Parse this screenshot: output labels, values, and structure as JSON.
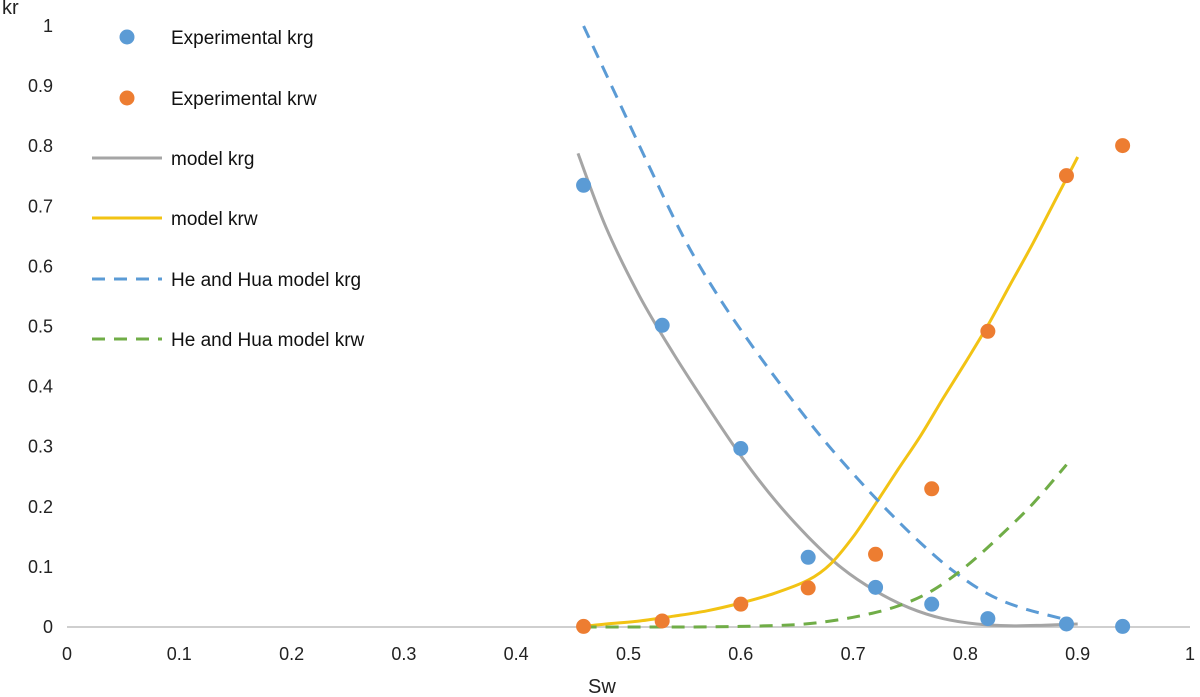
{
  "chart_data": {
    "type": "scatter",
    "xlabel": "Sw",
    "ylabel": "kr",
    "xlim": [
      0,
      1
    ],
    "ylim": [
      0,
      1
    ],
    "x_ticks": [
      "0",
      "0.1",
      "0.2",
      "0.3",
      "0.4",
      "0.5",
      "0.6",
      "0.7",
      "0.8",
      "0.9",
      "1"
    ],
    "y_ticks": [
      "0",
      "0.1",
      "0.2",
      "0.3",
      "0.4",
      "0.5",
      "0.6",
      "0.7",
      "0.8",
      "0.9",
      "1"
    ],
    "grid": false,
    "legend_position": "top-left",
    "series": [
      {
        "name": "Experimental krg",
        "kind": "markers",
        "color": "#5b9bd5",
        "x": [
          0.46,
          0.53,
          0.6,
          0.66,
          0.72,
          0.77,
          0.82,
          0.89,
          0.94
        ],
        "y": [
          0.735,
          0.502,
          0.297,
          0.116,
          0.066,
          0.038,
          0.014,
          0.005,
          0.001
        ]
      },
      {
        "name": "Experimental krw",
        "kind": "markers",
        "color": "#ed7d31",
        "x": [
          0.46,
          0.53,
          0.6,
          0.66,
          0.72,
          0.77,
          0.82,
          0.89,
          0.94
        ],
        "y": [
          0.001,
          0.01,
          0.038,
          0.065,
          0.121,
          0.23,
          0.492,
          0.751,
          0.801
        ]
      },
      {
        "name": "model krg",
        "kind": "solid",
        "color": "#a5a5a5",
        "x": [
          0.455,
          0.48,
          0.51,
          0.54,
          0.57,
          0.6,
          0.63,
          0.66,
          0.69,
          0.72,
          0.75,
          0.78,
          0.81,
          0.84,
          0.87,
          0.9
        ],
        "y": [
          0.788,
          0.665,
          0.55,
          0.455,
          0.368,
          0.285,
          0.212,
          0.15,
          0.098,
          0.06,
          0.032,
          0.014,
          0.005,
          0.002,
          0.003,
          0.005
        ]
      },
      {
        "name": "model krw",
        "kind": "solid",
        "color": "#f2c314",
        "x": [
          0.455,
          0.48,
          0.51,
          0.54,
          0.57,
          0.6,
          0.63,
          0.66,
          0.68,
          0.7,
          0.72,
          0.74,
          0.76,
          0.78,
          0.8,
          0.82,
          0.84,
          0.86,
          0.88,
          0.9
        ],
        "y": [
          0.0,
          0.005,
          0.01,
          0.018,
          0.027,
          0.04,
          0.056,
          0.078,
          0.105,
          0.15,
          0.205,
          0.262,
          0.318,
          0.38,
          0.44,
          0.502,
          0.57,
          0.638,
          0.71,
          0.782
        ]
      },
      {
        "name": "He and Hua model krg",
        "kind": "dashed",
        "color": "#5b9bd5",
        "x": [
          0.46,
          0.49,
          0.52,
          0.55,
          0.58,
          0.61,
          0.64,
          0.67,
          0.7,
          0.73,
          0.76,
          0.79,
          0.82,
          0.85,
          0.89
        ],
        "y": [
          1.0,
          0.88,
          0.76,
          0.645,
          0.55,
          0.468,
          0.392,
          0.32,
          0.255,
          0.195,
          0.14,
          0.092,
          0.055,
          0.032,
          0.012
        ]
      },
      {
        "name": "He and Hua model krw",
        "kind": "dashed",
        "color": "#70ad47",
        "x": [
          0.46,
          0.5,
          0.55,
          0.6,
          0.65,
          0.68,
          0.71,
          0.74,
          0.77,
          0.8,
          0.83,
          0.86,
          0.89
        ],
        "y": [
          0.0,
          0.0,
          0.0,
          0.001,
          0.004,
          0.01,
          0.02,
          0.035,
          0.06,
          0.1,
          0.15,
          0.205,
          0.27
        ]
      }
    ]
  }
}
